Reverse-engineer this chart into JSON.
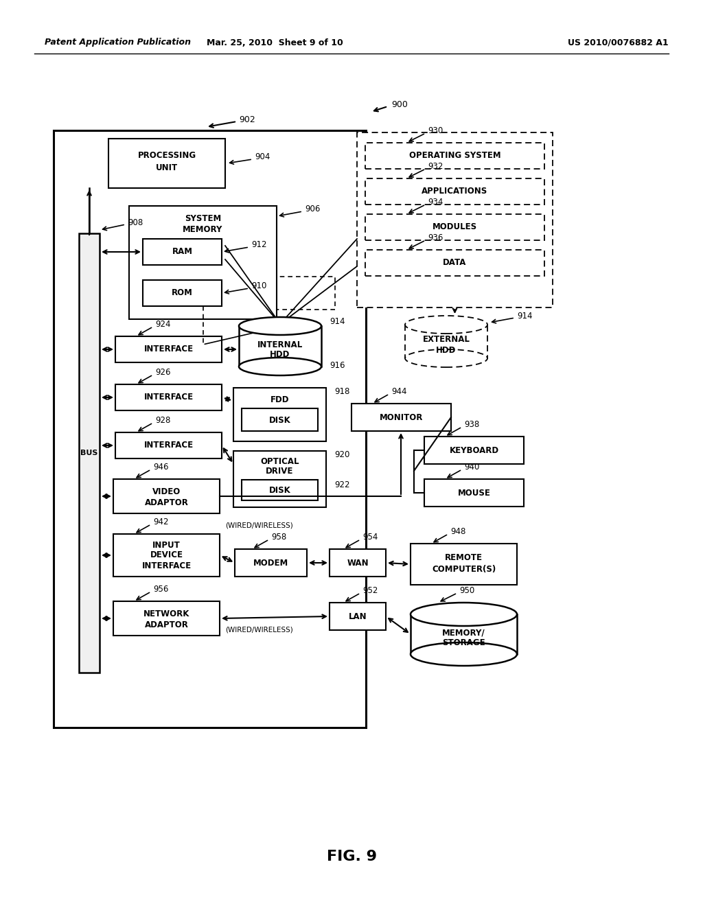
{
  "title_left": "Patent Application Publication",
  "title_mid": "Mar. 25, 2010  Sheet 9 of 10",
  "title_right": "US 2010/0076882 A1",
  "fig_label": "FIG. 9",
  "bg_color": "#ffffff"
}
